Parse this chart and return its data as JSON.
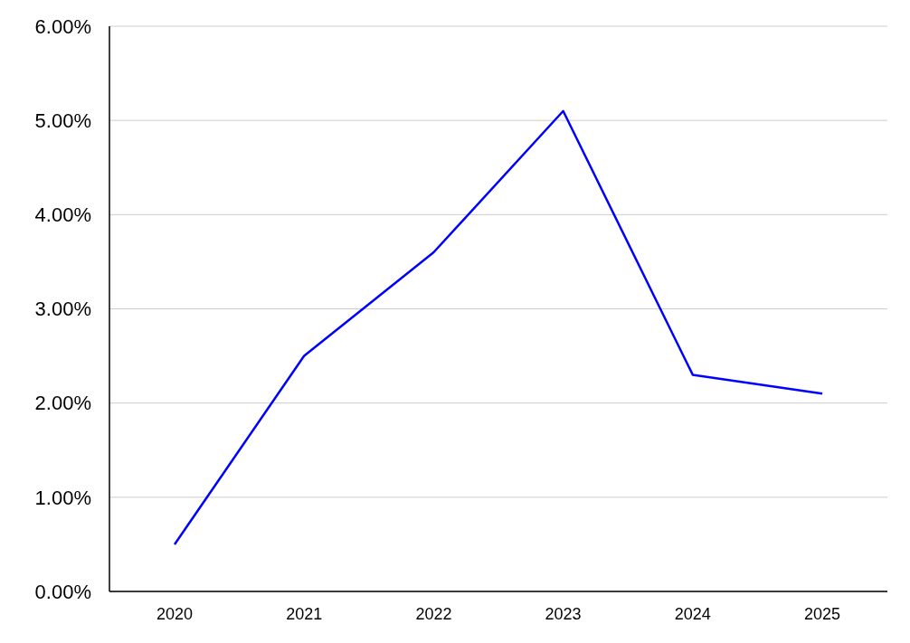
{
  "chart_data": {
    "type": "line",
    "categories": [
      "2020",
      "2021",
      "2022",
      "2023",
      "2024",
      "2025"
    ],
    "series": [
      {
        "color": "#0000ff",
        "values": [
          0.5,
          2.5,
          3.6,
          5.1,
          2.3,
          2.1
        ]
      }
    ],
    "ylim": [
      0,
      6
    ],
    "yticks": [
      {
        "value": 0,
        "label": "0.00%"
      },
      {
        "value": 1,
        "label": "1.00%"
      },
      {
        "value": 2,
        "label": "2.00%"
      },
      {
        "value": 3,
        "label": "3.00%"
      },
      {
        "value": 4,
        "label": "4.00%"
      },
      {
        "value": 5,
        "label": "5.00%"
      },
      {
        "value": 6,
        "label": "6.00%"
      }
    ],
    "grid": "y",
    "legend": false,
    "marker": "none",
    "line_style": "solid"
  }
}
